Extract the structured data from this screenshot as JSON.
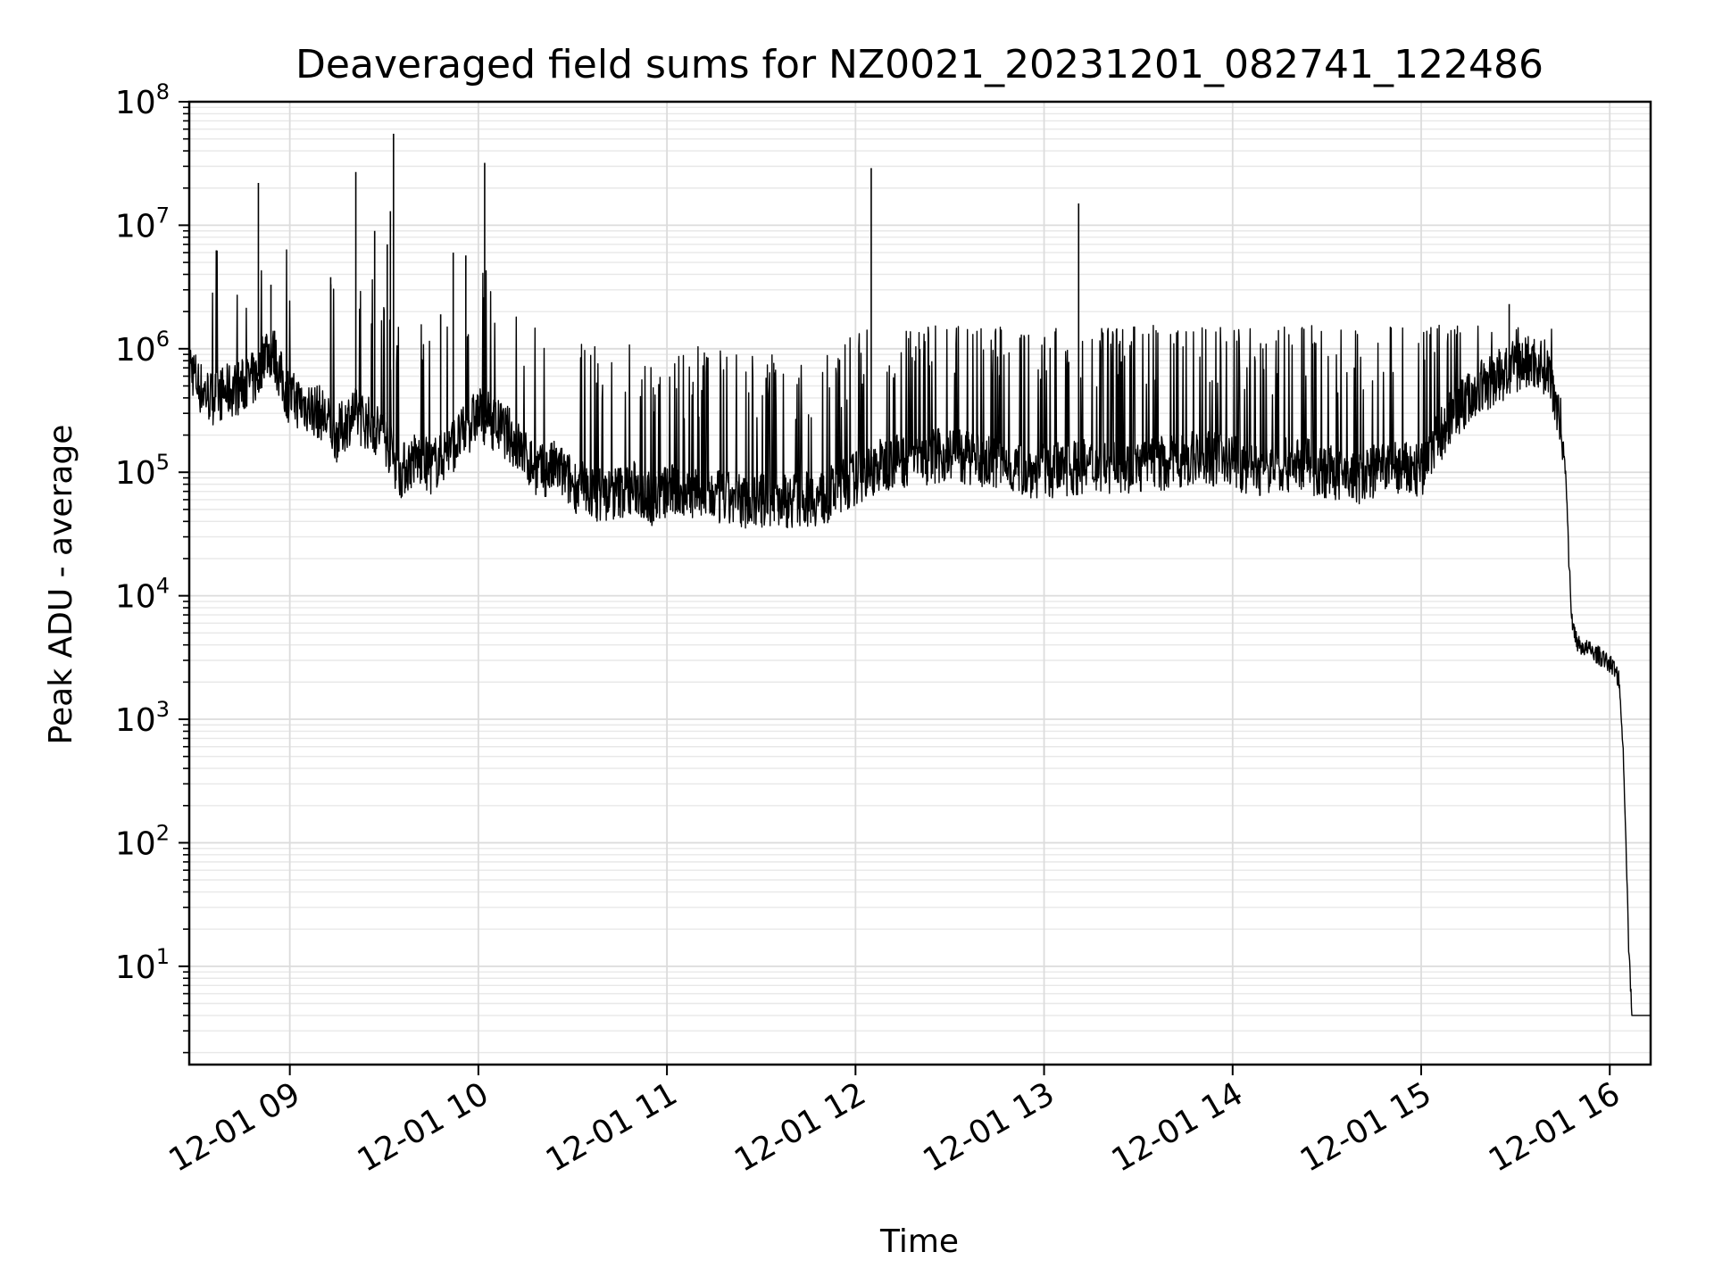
{
  "chart_data": {
    "type": "line",
    "title": "Deaveraged field sums for NZ0021_20231201_082741_122486",
    "xlabel": "Time",
    "ylabel": "Peak ADU - average",
    "y_scale": "log",
    "ylim": [
      1.6,
      100000000
    ],
    "xlim": [
      "2023-12-01 08:28",
      "2023-12-01 16:13"
    ],
    "x_ticks": [
      "12-01 09",
      "12-01 10",
      "12-01 11",
      "12-01 12",
      "12-01 13",
      "12-01 14",
      "12-01 15",
      "12-01 16"
    ],
    "y_ticks": [
      {
        "base": "10",
        "exp": "1"
      },
      {
        "base": "10",
        "exp": "2"
      },
      {
        "base": "10",
        "exp": "3"
      },
      {
        "base": "10",
        "exp": "4"
      },
      {
        "base": "10",
        "exp": "5"
      },
      {
        "base": "10",
        "exp": "6"
      },
      {
        "base": "10",
        "exp": "7"
      },
      {
        "base": "10",
        "exp": "8"
      }
    ],
    "grid": true,
    "legend": "none",
    "line_color": "#000000",
    "series": [
      {
        "x": [
          "08:28",
          "08:31",
          "08:35",
          "08:40",
          "08:45",
          "08:50",
          "08:52",
          "08:55",
          "08:58",
          "09:00",
          "09:05",
          "09:10",
          "09:15",
          "09:20",
          "09:25",
          "09:30",
          "09:35",
          "09:40",
          "09:45",
          "09:50",
          "09:55",
          "10:00",
          "10:05",
          "10:10",
          "10:15",
          "10:20",
          "10:25",
          "10:30",
          "10:35",
          "10:40",
          "10:45",
          "10:50",
          "10:55",
          "11:00",
          "11:10",
          "11:20",
          "11:30",
          "11:40",
          "11:50",
          "12:00",
          "12:10",
          "12:20",
          "12:30",
          "12:40",
          "12:50",
          "13:00",
          "13:10",
          "13:20",
          "13:30",
          "13:40",
          "13:50",
          "14:00",
          "14:10",
          "14:20",
          "14:30",
          "14:40",
          "14:50",
          "15:00",
          "15:05",
          "15:10",
          "15:15",
          "15:20",
          "15:25",
          "15:30",
          "15:35",
          "15:40",
          "15:42",
          "15:44",
          "15:46",
          "15:47",
          "15:48",
          "15:50",
          "15:55",
          "16:00",
          "16:02",
          "16:03",
          "16:04",
          "16:05",
          "16:06",
          "16:07",
          "16:08",
          "16:10",
          "16:13"
        ],
        "y": [
          800000,
          500000,
          400000,
          450000,
          500000,
          600000,
          1000000,
          900000,
          500000,
          400000,
          350000,
          300000,
          200000,
          300000,
          250000,
          200000,
          100000,
          130000,
          110000,
          150000,
          200000,
          300000,
          250000,
          200000,
          130000,
          100000,
          110000,
          80000,
          70000,
          65000,
          70000,
          75000,
          60000,
          70000,
          65000,
          60000,
          58000,
          60000,
          62000,
          90000,
          120000,
          130000,
          140000,
          120000,
          110000,
          100000,
          110000,
          110000,
          110000,
          120000,
          130000,
          120000,
          100000,
          120000,
          100000,
          90000,
          110000,
          100000,
          180000,
          300000,
          400000,
          500000,
          600000,
          700000,
          800000,
          700000,
          500000,
          300000,
          100000,
          20000,
          6000,
          4000,
          3500,
          2800,
          2500,
          2000,
          800,
          150,
          15,
          4,
          4,
          4,
          4
        ]
      }
    ],
    "spikes": [
      {
        "x": "08:50",
        "y": 22000000
      },
      {
        "x": "08:54",
        "y": 3300000
      },
      {
        "x": "09:13",
        "y": 3800000
      },
      {
        "x": "09:21",
        "y": 27000000
      },
      {
        "x": "09:27",
        "y": 9000000
      },
      {
        "x": "09:31",
        "y": 7000000
      },
      {
        "x": "09:32",
        "y": 13000000
      },
      {
        "x": "09:33",
        "y": 55000000
      },
      {
        "x": "09:48",
        "y": 1900000
      },
      {
        "x": "09:52",
        "y": 6000000
      },
      {
        "x": "09:56",
        "y": 5700000
      },
      {
        "x": "10:02",
        "y": 32000000
      },
      {
        "x": "12:05",
        "y": 29000000
      },
      {
        "x": "13:11",
        "y": 15000000
      },
      {
        "x": "15:28",
        "y": 2300000
      }
    ]
  }
}
